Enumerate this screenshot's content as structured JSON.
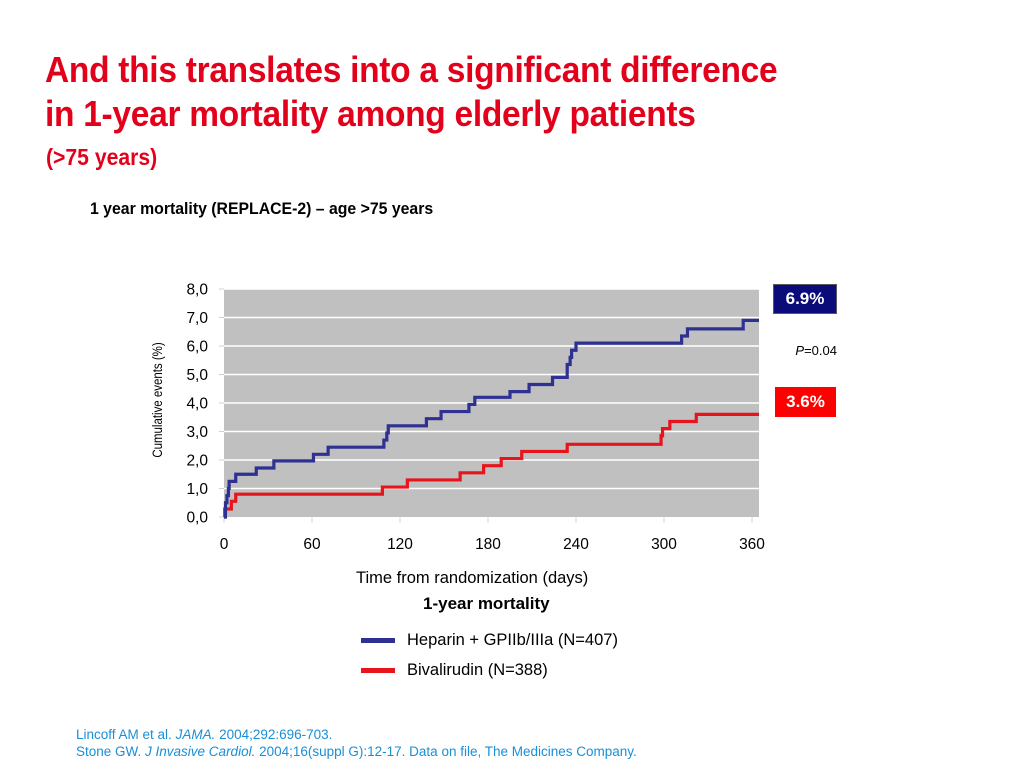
{
  "slide": {
    "title_line1": "And this translates into a significant difference",
    "title_line2": "in 1-year mortality among elderly patients",
    "subtitle": "(>75 years)",
    "chart_heading": "1 year mortality (REPLACE-2) – age >75 years",
    "caption": "1-year mortality",
    "p_value_label": "P",
    "p_value_text": "=0.04",
    "badges": {
      "heparin": "6.9%",
      "bivalirudin": "3.6%"
    },
    "colors": {
      "title_red": "#e3001b",
      "heparin_line": "#2e3192",
      "bivalirudin_line": "#e8141c",
      "badge_blue": "#0b0b7a",
      "badge_red": "#ff0000",
      "plot_bg": "#c0c0c0",
      "reference_blue": "#1a8fd6"
    },
    "references": [
      {
        "pre": "Lincoff AM et al. ",
        "journal": "JAMA.",
        "post": " 2004;292:696-703."
      },
      {
        "pre": "Stone GW. ",
        "journal": "J Invasive Cardiol.",
        "post": " 2004;16(suppl G):12-17. Data on file, The Medicines Company."
      }
    ]
  },
  "chart_data": {
    "type": "line",
    "subtype": "step (Kaplan-Meier cumulative events)",
    "title": "1 year mortality (REPLACE-2) – age >75 years",
    "xlabel": "Time from randomization (days)",
    "ylabel": "Cumulative events (%)",
    "xlim": [
      0,
      365
    ],
    "ylim": [
      0,
      8
    ],
    "x_ticks": [
      0,
      60,
      120,
      180,
      240,
      300,
      360
    ],
    "x_tick_labels": [
      "0",
      "60",
      "120",
      "180",
      "240",
      "300",
      "360"
    ],
    "y_ticks": [
      0,
      1,
      2,
      3,
      4,
      5,
      6,
      7,
      8
    ],
    "y_tick_labels": [
      "0,0",
      "1,0",
      "2,0",
      "3,0",
      "4,0",
      "5,0",
      "6,0",
      "7,0",
      "8,0"
    ],
    "grid": "horizontal",
    "legend_position": "bottom",
    "series": [
      {
        "name": "Heparin + GPIIb/IIIa (N=407)",
        "color": "#2e3192",
        "final_value": 6.9,
        "steps": [
          [
            0,
            0.0
          ],
          [
            1,
            0.5
          ],
          [
            2,
            0.75
          ],
          [
            3,
            1.0
          ],
          [
            3.5,
            1.25
          ],
          [
            8,
            1.5
          ],
          [
            22,
            1.72
          ],
          [
            34,
            1.97
          ],
          [
            61,
            2.2
          ],
          [
            71,
            2.45
          ],
          [
            109,
            2.7
          ],
          [
            111,
            2.95
          ],
          [
            112,
            3.2
          ],
          [
            138,
            3.45
          ],
          [
            148,
            3.7
          ],
          [
            167,
            3.95
          ],
          [
            171,
            4.2
          ],
          [
            195,
            4.4
          ],
          [
            208,
            4.65
          ],
          [
            224,
            4.9
          ],
          [
            234,
            5.35
          ],
          [
            236,
            5.6
          ],
          [
            237,
            5.85
          ],
          [
            240,
            6.1
          ],
          [
            312,
            6.35
          ],
          [
            316,
            6.6
          ],
          [
            354,
            6.9
          ],
          [
            365,
            6.9
          ]
        ]
      },
      {
        "name": "Bivalirudin (N=388)",
        "color": "#e8141c",
        "final_value": 3.6,
        "steps": [
          [
            0,
            0.0
          ],
          [
            0.5,
            0.28
          ],
          [
            5,
            0.55
          ],
          [
            8,
            0.8
          ],
          [
            108,
            1.05
          ],
          [
            125,
            1.3
          ],
          [
            161,
            1.55
          ],
          [
            177,
            1.8
          ],
          [
            189,
            2.05
          ],
          [
            203,
            2.3
          ],
          [
            234,
            2.55
          ],
          [
            298,
            2.85
          ],
          [
            299,
            3.1
          ],
          [
            304,
            3.35
          ],
          [
            322,
            3.6
          ],
          [
            365,
            3.6
          ]
        ]
      }
    ],
    "annotations": [
      {
        "text": "6.9%",
        "series": "Heparin + GPIIb/IIIa (N=407)"
      },
      {
        "text": "P=0.04"
      },
      {
        "text": "3.6%",
        "series": "Bivalirudin (N=388)"
      }
    ],
    "caption": "1-year mortality"
  }
}
